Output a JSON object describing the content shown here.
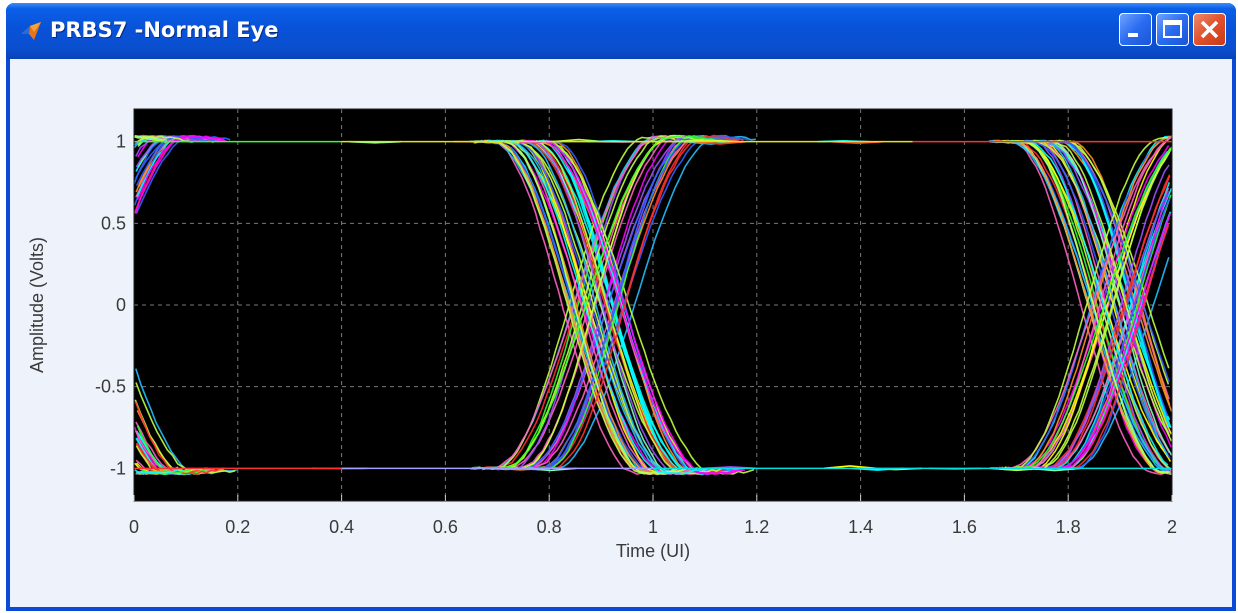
{
  "window": {
    "title": "PRBS7 -Normal Eye",
    "icon": "matlab-icon",
    "controls": [
      "minimize-icon",
      "maximize-icon",
      "close-icon"
    ]
  },
  "chart_data": {
    "type": "line",
    "title": "",
    "xlabel": "Time (UI)",
    "ylabel": "Amplitude (Volts)",
    "xlim": [
      0,
      2
    ],
    "ylim": [
      -1.2,
      1.2
    ],
    "xticks": [
      "0",
      "0.2",
      "0.4",
      "0.6",
      "0.8",
      "1",
      "1.2",
      "1.4",
      "1.6",
      "1.8",
      "2"
    ],
    "yticks": [
      "1",
      "0.5",
      "0",
      "-0.5",
      "-1"
    ],
    "ytick_values": [
      1,
      0.5,
      0,
      -0.5,
      -1
    ],
    "grid": true,
    "grid_style": "dashed",
    "background": "#000000",
    "levels": [
      1,
      -1
    ],
    "transition_period_ui": 1,
    "crossing_points_ui": [
      0.07,
      1.07
    ],
    "rise_time_ui": 0.3,
    "bit_edges_ui": [
      0,
      0.75,
      1.75
    ],
    "description_series": "eye diagram: many overlaid multicolor traces forming two eye openings"
  },
  "colors": {
    "trace_palette": [
      "#00ffff",
      "#ff00ff",
      "#ffff00",
      "#ff3030",
      "#30ff30",
      "#3060ff",
      "#ff9020",
      "#20c0ff",
      "#c0ff40",
      "#ff60c0",
      "#80ffc0",
      "#a050ff"
    ]
  }
}
